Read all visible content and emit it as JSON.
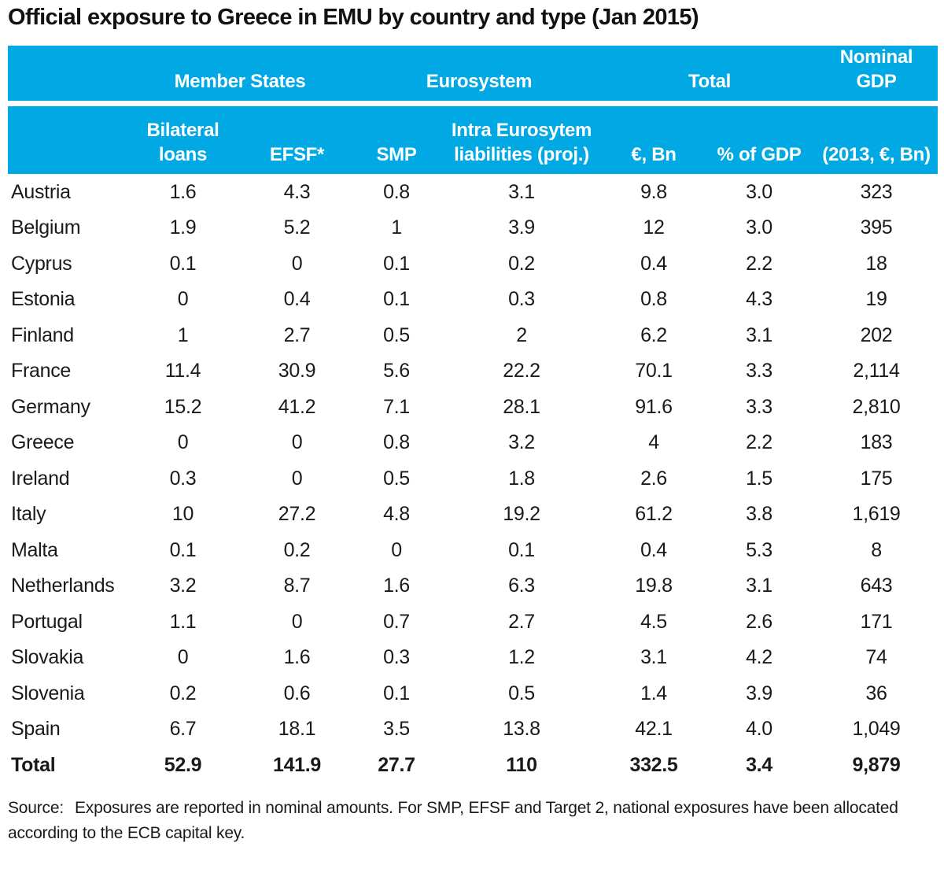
{
  "title": "Official exposure to Greece in EMU by country and type (Jan 2015)",
  "colors": {
    "header_bg": "#00a8e4",
    "header_text": "#ffffff",
    "body_text": "#1a1a1a"
  },
  "chart_data": {
    "type": "table",
    "title": "Official exposure to Greece in EMU by country and type (Jan 2015)",
    "group_headers": [
      {
        "label": "",
        "span": 1
      },
      {
        "label": "Member States",
        "span": 2
      },
      {
        "label": "Eurosystem",
        "span": 2
      },
      {
        "label": "Total",
        "span": 2
      },
      {
        "label": "Nominal GDP",
        "span": 1
      }
    ],
    "columns": [
      "",
      "Bilateral loans",
      "EFSF*",
      "SMP",
      "Intra Eurosytem liabilities (proj.)",
      "€, Bn",
      "% of GDP",
      "(2013, €, Bn)"
    ],
    "rows": [
      [
        "Austria",
        "1.6",
        "4.3",
        "0.8",
        "3.1",
        "9.8",
        "3.0",
        "323"
      ],
      [
        "Belgium",
        "1.9",
        "5.2",
        "1",
        "3.9",
        "12",
        "3.0",
        "395"
      ],
      [
        "Cyprus",
        "0.1",
        "0",
        "0.1",
        "0.2",
        "0.4",
        "2.2",
        "18"
      ],
      [
        "Estonia",
        "0",
        "0.4",
        "0.1",
        "0.3",
        "0.8",
        "4.3",
        "19"
      ],
      [
        "Finland",
        "1",
        "2.7",
        "0.5",
        "2",
        "6.2",
        "3.1",
        "202"
      ],
      [
        "France",
        "11.4",
        "30.9",
        "5.6",
        "22.2",
        "70.1",
        "3.3",
        "2,114"
      ],
      [
        "Germany",
        "15.2",
        "41.2",
        "7.1",
        "28.1",
        "91.6",
        "3.3",
        "2,810"
      ],
      [
        "Greece",
        "0",
        "0",
        "0.8",
        "3.2",
        "4",
        "2.2",
        "183"
      ],
      [
        "Ireland",
        "0.3",
        "0",
        "0.5",
        "1.8",
        "2.6",
        "1.5",
        "175"
      ],
      [
        "Italy",
        "10",
        "27.2",
        "4.8",
        "19.2",
        "61.2",
        "3.8",
        "1,619"
      ],
      [
        "Malta",
        "0.1",
        "0.2",
        "0",
        "0.1",
        "0.4",
        "5.3",
        "8"
      ],
      [
        "Netherlands",
        "3.2",
        "8.7",
        "1.6",
        "6.3",
        "19.8",
        "3.1",
        "643"
      ],
      [
        "Portugal",
        "1.1",
        "0",
        "0.7",
        "2.7",
        "4.5",
        "2.6",
        "171"
      ],
      [
        "Slovakia",
        "0",
        "1.6",
        "0.3",
        "1.2",
        "3.1",
        "4.2",
        "74"
      ],
      [
        "Slovenia",
        "0.2",
        "0.6",
        "0.1",
        "0.5",
        "1.4",
        "3.9",
        "36"
      ],
      [
        "Spain",
        "6.7",
        "18.1",
        "3.5",
        "13.8",
        "42.1",
        "4.0",
        "1,049"
      ]
    ],
    "total_row": [
      "Total",
      "52.9",
      "141.9",
      "27.7",
      "110",
      "332.5",
      "3.4",
      "9,879"
    ]
  },
  "source": {
    "label": "Source:",
    "text": "Exposures are reported in nominal amounts. For SMP, EFSF and Target 2, national exposures have been allocated according to the ECB capital key."
  }
}
